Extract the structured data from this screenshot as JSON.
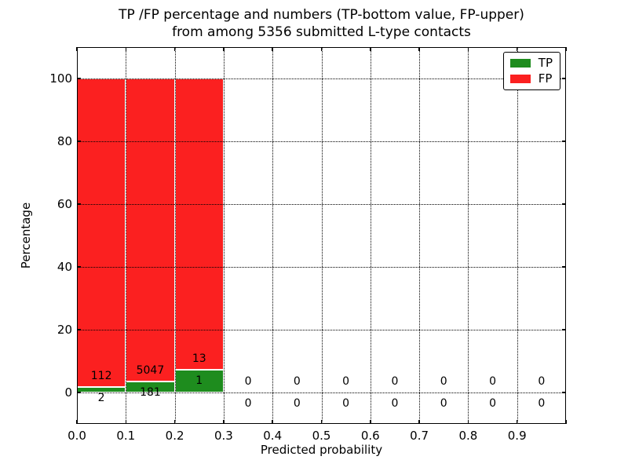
{
  "chart_data": {
    "type": "bar",
    "stacked": true,
    "title_line1": "TP /FP percentage and numbers (TP-bottom value, FP-upper)",
    "title_line2": "from among 5356 submitted L-type contacts",
    "xlabel": "Predicted probability",
    "ylabel": "Percentage",
    "total_contacts": 5356,
    "xlim": [
      0,
      1.0
    ],
    "ylim": [
      -10,
      110
    ],
    "x_ticks": [
      {
        "value": 0.0,
        "label": "0.0"
      },
      {
        "value": 0.1,
        "label": "0.1"
      },
      {
        "value": 0.2,
        "label": "0.2"
      },
      {
        "value": 0.3,
        "label": "0.3"
      },
      {
        "value": 0.4,
        "label": "0.4"
      },
      {
        "value": 0.5,
        "label": "0.5"
      },
      {
        "value": 0.6,
        "label": "0.6"
      },
      {
        "value": 0.7,
        "label": "0.7"
      },
      {
        "value": 0.8,
        "label": "0.8"
      },
      {
        "value": 0.9,
        "label": "0.9"
      },
      {
        "value": 1.0,
        "label": ""
      }
    ],
    "y_ticks": [
      {
        "value": 0,
        "label": "0"
      },
      {
        "value": 20,
        "label": "20"
      },
      {
        "value": 40,
        "label": "40"
      },
      {
        "value": 60,
        "label": "60"
      },
      {
        "value": 80,
        "label": "80"
      },
      {
        "value": 100,
        "label": "100"
      }
    ],
    "grid": "dotted",
    "bin_width": 0.1,
    "bins": [
      {
        "start": 0.0,
        "tp": 2,
        "fp": 112
      },
      {
        "start": 0.1,
        "tp": 181,
        "fp": 5047
      },
      {
        "start": 0.2,
        "tp": 1,
        "fp": 13
      },
      {
        "start": 0.3,
        "tp": 0,
        "fp": 0
      },
      {
        "start": 0.4,
        "tp": 0,
        "fp": 0
      },
      {
        "start": 0.5,
        "tp": 0,
        "fp": 0
      },
      {
        "start": 0.6,
        "tp": 0,
        "fp": 0
      },
      {
        "start": 0.7,
        "tp": 0,
        "fp": 0
      },
      {
        "start": 0.8,
        "tp": 0,
        "fp": 0
      },
      {
        "start": 0.9,
        "tp": 0,
        "fp": 0
      }
    ],
    "legend": {
      "position": "upper right",
      "items": [
        {
          "label": "TP",
          "color": "#1e8c1e"
        },
        {
          "label": "FP",
          "color": "#fb2020"
        }
      ]
    },
    "colors": {
      "tp": "#1e8c1e",
      "fp": "#fb2020",
      "grid": "#000000",
      "text": "#000000",
      "background": "#ffffff"
    }
  }
}
